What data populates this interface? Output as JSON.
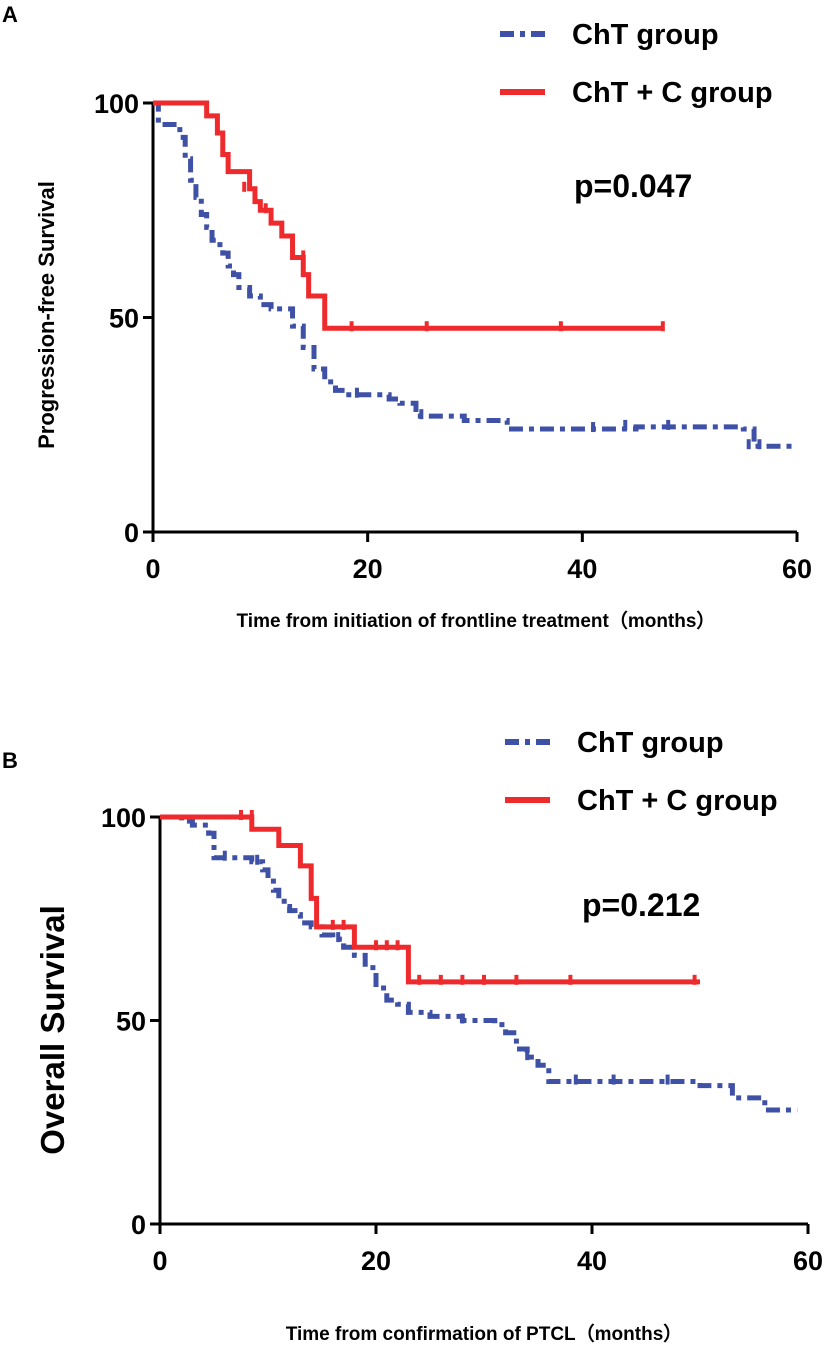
{
  "colors": {
    "cht": "#3F51A6",
    "chtc": "#EE2A2D",
    "axis": "#000000"
  },
  "chart_data": [
    {
      "type": "line",
      "panel_label": "A",
      "title": "",
      "xlabel": "Time from initiation of frontline treatment（months）",
      "ylabel": "Progression-free Survival",
      "xlim": [
        0,
        60
      ],
      "ylim": [
        0,
        100
      ],
      "xticks": [
        0,
        20,
        40,
        60
      ],
      "yticks": [
        0,
        50,
        100
      ],
      "legend": {
        "placement": "top-right"
      },
      "annotation": "p=0.047",
      "series": [
        {
          "name": "ChT group",
          "style": "dash-dot",
          "color": "#3F51A6",
          "x": [
            0,
            0.5,
            1.5,
            2.5,
            3,
            3.5,
            4,
            4.5,
            5,
            5.5,
            6,
            6.5,
            7,
            7.5,
            8,
            9,
            10,
            11,
            12,
            13,
            14,
            15,
            16,
            17,
            18,
            20,
            22,
            23,
            24.5,
            29,
            33,
            36,
            40,
            45,
            50,
            55,
            56,
            58,
            60
          ],
          "y": [
            100,
            95,
            95,
            92,
            87,
            82,
            78,
            74,
            71,
            68,
            67,
            65,
            62,
            60,
            57,
            55,
            53,
            52,
            52,
            48,
            43,
            38,
            35,
            33,
            32,
            32,
            31,
            30,
            27,
            26,
            24,
            24,
            24,
            24.5,
            24.5,
            24,
            20,
            20,
            20
          ],
          "censored_x": [
            19,
            25,
            41,
            44,
            48,
            55.5,
            56.5
          ],
          "censored_y": [
            32,
            27,
            24,
            24.5,
            24.5,
            20,
            20
          ]
        },
        {
          "name": "ChT + C group",
          "style": "solid",
          "color": "#EE2A2D",
          "x": [
            0,
            3.5,
            5,
            6,
            6.5,
            7,
            9,
            9.5,
            10,
            11,
            12,
            13,
            14,
            14.5,
            15,
            16,
            20,
            25,
            30,
            38,
            47.5
          ],
          "y": [
            100,
            100,
            97,
            93,
            88,
            84,
            80,
            77,
            75,
            72,
            69,
            64,
            60,
            55,
            55,
            47.5,
            47.5,
            47.5,
            47.5,
            47.5,
            47.5
          ],
          "censored_x": [
            8.5,
            10.5,
            14,
            18.5,
            25.5,
            38,
            47.5
          ],
          "censored_y": [
            80,
            75,
            64,
            47.5,
            47.5,
            47.5,
            47.5
          ]
        }
      ]
    },
    {
      "type": "line",
      "panel_label": "B",
      "title": "",
      "xlabel": "Time from confirmation of PTCL（months）",
      "ylabel": "Overall Survival",
      "xlim": [
        0,
        60
      ],
      "ylim": [
        0,
        100
      ],
      "xticks": [
        0,
        20,
        40,
        60
      ],
      "yticks": [
        0,
        50,
        100
      ],
      "legend": {
        "placement": "top-right"
      },
      "annotation": "p=0.212",
      "series": [
        {
          "name": "ChT group",
          "style": "dash-dot",
          "color": "#3F51A6",
          "x": [
            0,
            2,
            3,
            4.5,
            5,
            7,
            8.5,
            9.5,
            10,
            10.5,
            11,
            11.5,
            12,
            12.5,
            13,
            14,
            15,
            16,
            17,
            18,
            19,
            20,
            21,
            22,
            23,
            25,
            28,
            31,
            32,
            33,
            34,
            35,
            36,
            38,
            40,
            45,
            50,
            53,
            56,
            59
          ],
          "y": [
            100,
            99,
            98,
            96,
            90,
            90,
            89,
            87,
            85,
            82,
            80,
            78,
            77,
            76,
            74,
            73,
            71,
            70,
            68,
            66,
            63,
            58,
            55,
            54,
            52,
            51,
            50,
            49,
            47,
            43,
            41,
            39,
            35,
            35,
            35,
            35,
            34,
            31,
            28,
            28
          ],
          "censored_x": [
            6,
            9,
            16.5,
            28,
            34,
            38.5,
            42,
            47
          ],
          "censored_y": [
            90,
            89,
            70,
            50,
            41,
            35,
            35,
            35
          ]
        },
        {
          "name": "ChT + C group",
          "style": "solid",
          "color": "#EE2A2D",
          "x": [
            0,
            8.5,
            11,
            13,
            14,
            14.5,
            18,
            23,
            30,
            40,
            50
          ],
          "y": [
            100,
            97,
            93,
            88,
            80,
            73,
            68,
            59.5,
            59.5,
            59.5,
            59.5
          ],
          "censored_x": [
            7.5,
            8.5,
            16,
            17,
            20,
            21,
            22,
            24,
            26,
            28,
            30,
            33,
            38,
            49.5
          ],
          "censored_y": [
            100,
            100,
            73,
            73,
            68,
            68,
            68,
            59.5,
            59.5,
            59.5,
            59.5,
            59.5,
            59.5,
            59.5
          ]
        }
      ]
    }
  ]
}
